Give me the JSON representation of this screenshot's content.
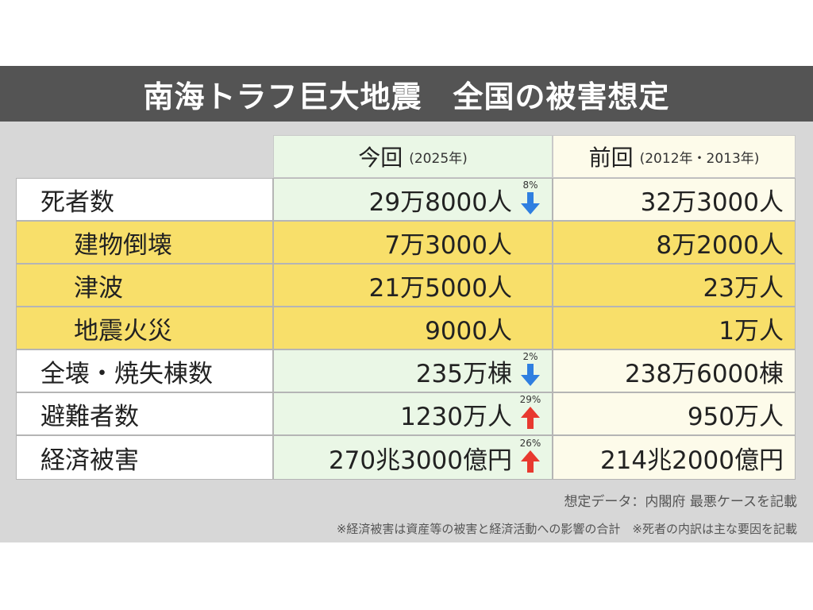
{
  "title": "南海トラフ巨大地震　全国の被害想定",
  "headers": {
    "now_main": "今回",
    "now_sub": "(2025年)",
    "prev_main": "前回",
    "prev_sub": "(2012年・2013年)"
  },
  "rows": [
    {
      "label": "死者数",
      "now": "29万8000人",
      "prev": "32万3000人",
      "change": {
        "pct": "8%",
        "dir": "down"
      }
    },
    {
      "label": "建物倒壊",
      "now": "7万3000人",
      "prev": "8万2000人"
    },
    {
      "label": "津波",
      "now": "21万5000人",
      "prev": "23万人"
    },
    {
      "label": "地震火災",
      "now": "9000人",
      "prev": "1万人"
    },
    {
      "label": "全壊・焼失棟数",
      "now": "235万棟",
      "prev": "238万6000棟",
      "change": {
        "pct": "2%",
        "dir": "down"
      }
    },
    {
      "label": "避難者数",
      "now": "1230万人",
      "prev": "950万人",
      "change": {
        "pct": "29%",
        "dir": "up"
      }
    },
    {
      "label": "経済被害",
      "now": "270兆3000億円",
      "prev": "214兆2000億円",
      "change": {
        "pct": "26%",
        "dir": "up"
      }
    }
  ],
  "notes": {
    "source": "想定データ：内閣府 最悪ケースを記載",
    "footnote": "※経済被害は資産等の被害と経済活動への影響の合計　※死者の内訳は主な要因を記載"
  },
  "colors": {
    "up_arrow": "#e8392f",
    "down_arrow": "#2f7fe0",
    "sub_row": "#f8df6a"
  }
}
